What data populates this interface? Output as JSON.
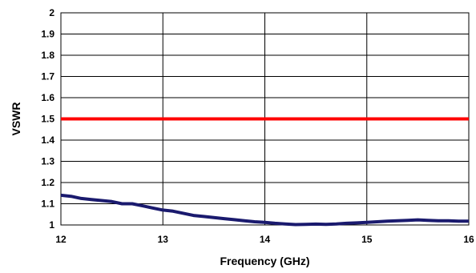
{
  "chart_data": {
    "type": "line",
    "title": "",
    "xlabel": "Frequency (GHz)",
    "ylabel": "VSWR",
    "xlim": [
      12,
      16
    ],
    "ylim": [
      1,
      2
    ],
    "x_ticks": [
      "12",
      "13",
      "14",
      "15",
      "16"
    ],
    "y_ticks": [
      "1",
      "1.1",
      "1.2",
      "1.3",
      "1.4",
      "1.5",
      "1.6",
      "1.7",
      "1.8",
      "1.9",
      "2"
    ],
    "grid": true,
    "legend": "none",
    "series": [
      {
        "color": "#1a1a6e",
        "x": [
          12.0,
          12.1,
          12.2,
          12.3,
          12.4,
          12.5,
          12.6,
          12.7,
          12.8,
          12.9,
          13.0,
          13.1,
          13.2,
          13.3,
          13.4,
          13.5,
          13.6,
          13.7,
          13.8,
          13.9,
          14.0,
          14.1,
          14.2,
          14.3,
          14.4,
          14.5,
          14.6,
          14.7,
          14.8,
          14.9,
          15.0,
          15.1,
          15.2,
          15.3,
          15.4,
          15.5,
          15.6,
          15.7,
          15.8,
          15.9,
          16.0
        ],
        "values": [
          1.14,
          1.135,
          1.125,
          1.12,
          1.115,
          1.11,
          1.1,
          1.1,
          1.09,
          1.08,
          1.07,
          1.065,
          1.055,
          1.045,
          1.04,
          1.035,
          1.03,
          1.025,
          1.02,
          1.015,
          1.012,
          1.008,
          1.005,
          1.002,
          1.003,
          1.004,
          1.003,
          1.005,
          1.008,
          1.01,
          1.012,
          1.015,
          1.018,
          1.02,
          1.022,
          1.024,
          1.022,
          1.02,
          1.02,
          1.018,
          1.018
        ]
      },
      {
        "color": "#ff0000",
        "x": [
          12,
          16
        ],
        "values": [
          1.5,
          1.5
        ]
      }
    ]
  }
}
